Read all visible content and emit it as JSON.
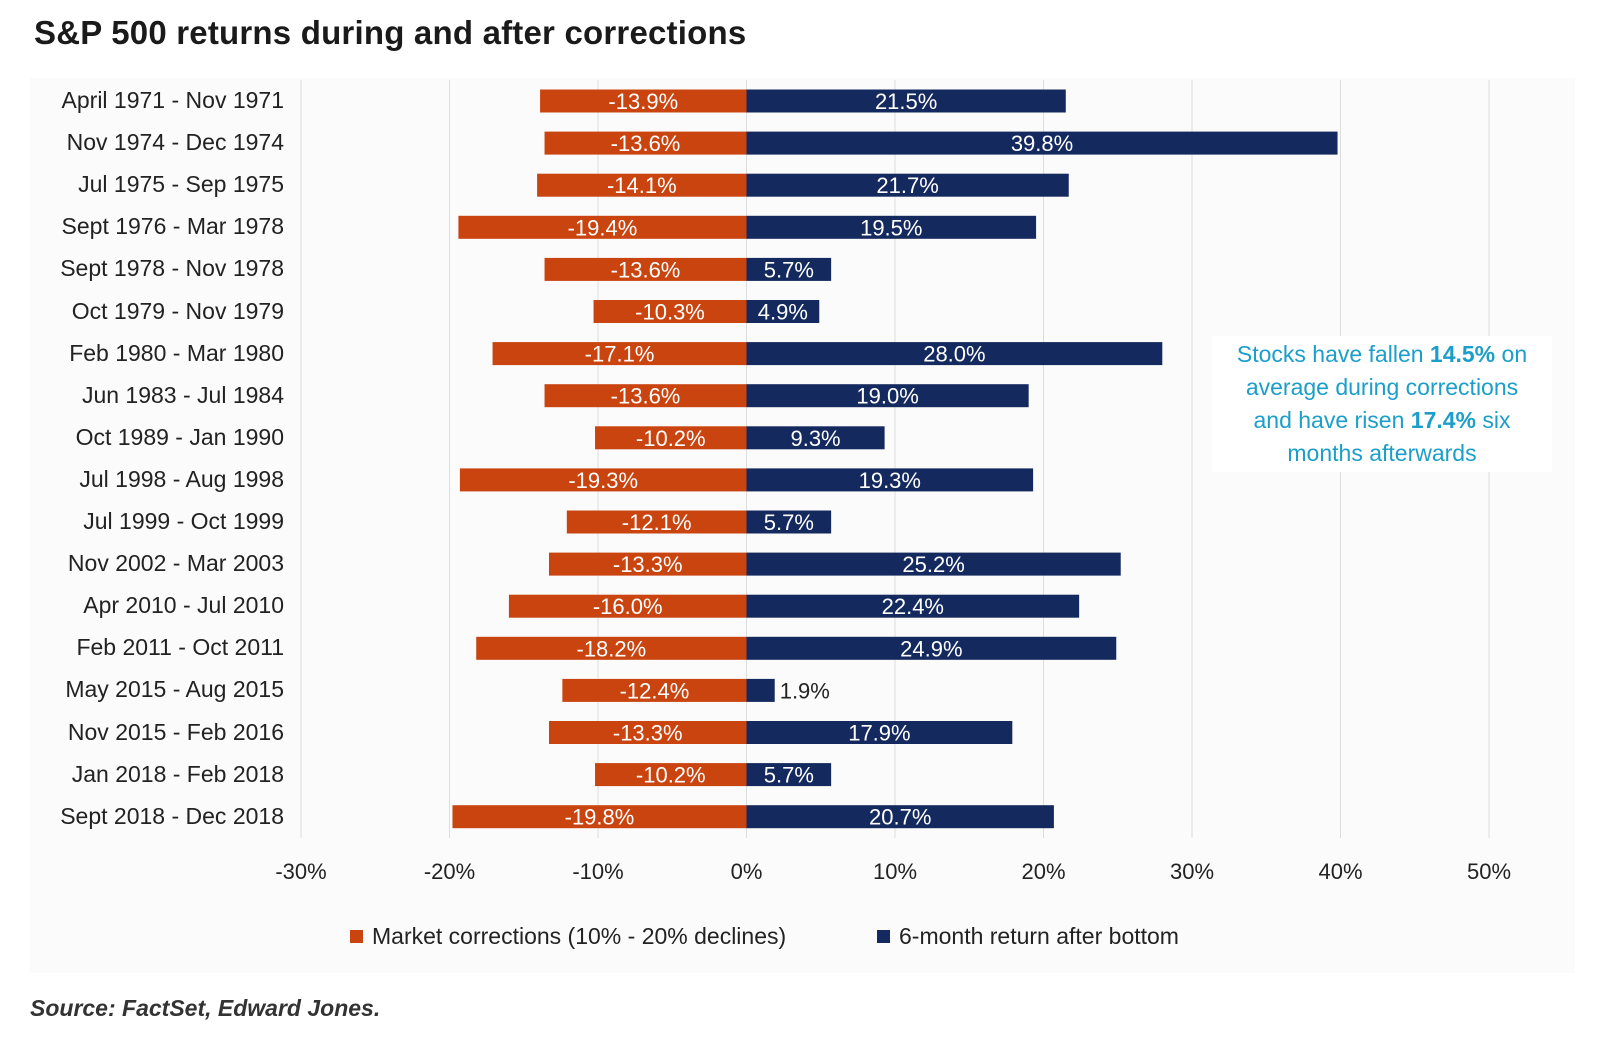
{
  "title": "S&P 500 returns during and after corrections",
  "source": "Source: FactSet, Edward Jones.",
  "annotation": {
    "line1_pre": "Stocks have fallen ",
    "line1_bold": "14.5%",
    "line1_post": " on",
    "line2": "average during  corrections",
    "line3_pre": "and have risen ",
    "line3_bold": "17.4%",
    "line3_post": " six",
    "line4": "months afterwards"
  },
  "colors": {
    "corrections": "#c9440f",
    "returns": "#14295e",
    "annotation": "#1b9ec9"
  },
  "chart_data": {
    "type": "bar",
    "orientation": "horizontal",
    "categories": [
      "April 1971 - Nov 1971",
      "Nov 1974 - Dec 1974",
      "Jul 1975 - Sep 1975",
      "Sept 1976 - Mar 1978",
      "Sept 1978 - Nov 1978",
      "Oct 1979 - Nov 1979",
      "Feb 1980 - Mar 1980",
      "Jun 1983 - Jul 1984",
      "Oct 1989 - Jan 1990",
      "Jul 1998 - Aug 1998",
      "Jul 1999 - Oct 1999",
      "Nov 2002 - Mar 2003",
      "Apr 2010 - Jul 2010",
      "Feb 2011 - Oct 2011",
      "May 2015 - Aug 2015",
      "Nov 2015 - Feb 2016",
      "Jan 2018 - Feb 2018",
      "Sept 2018 - Dec 2018"
    ],
    "series": [
      {
        "name": "Market corrections (10% - 20% declines)",
        "values": [
          -13.9,
          -13.6,
          -14.1,
          -19.4,
          -13.6,
          -10.3,
          -17.1,
          -13.6,
          -10.2,
          -19.3,
          -12.1,
          -13.3,
          -16.0,
          -18.2,
          -12.4,
          -13.3,
          -10.2,
          -19.8
        ],
        "labels": [
          "-13.9%",
          "-13.6%",
          "-14.1%",
          "-19.4%",
          "-13.6%",
          "-10.3%",
          "-17.1%",
          "-13.6%",
          "-10.2%",
          "-19.3%",
          "-12.1%",
          "-13.3%",
          "-16.0%",
          "-18.2%",
          "-12.4%",
          "-13.3%",
          "-10.2%",
          "-19.8%"
        ]
      },
      {
        "name": "6-month return after bottom",
        "values": [
          21.5,
          39.8,
          21.7,
          19.5,
          5.7,
          4.9,
          28.0,
          19.0,
          9.3,
          19.3,
          5.7,
          25.2,
          22.4,
          24.9,
          1.9,
          17.9,
          5.7,
          20.7
        ],
        "labels": [
          "21.5%",
          "39.8%",
          "21.7%",
          "19.5%",
          "5.7%",
          "4.9%",
          "28.0%",
          "19.0%",
          "9.3%",
          "19.3%",
          "5.7%",
          "25.2%",
          "22.4%",
          "24.9%",
          "1.9%",
          "17.9%",
          "5.7%",
          "20.7%"
        ]
      }
    ],
    "xlim": [
      -30,
      50
    ],
    "xticks": [
      -30,
      -20,
      -10,
      0,
      10,
      20,
      30,
      40,
      50
    ],
    "xtick_labels": [
      "-30%",
      "-20%",
      "-10%",
      "0%",
      "10%",
      "20%",
      "30%",
      "40%",
      "50%"
    ],
    "grid": true,
    "legend": "bottom"
  }
}
